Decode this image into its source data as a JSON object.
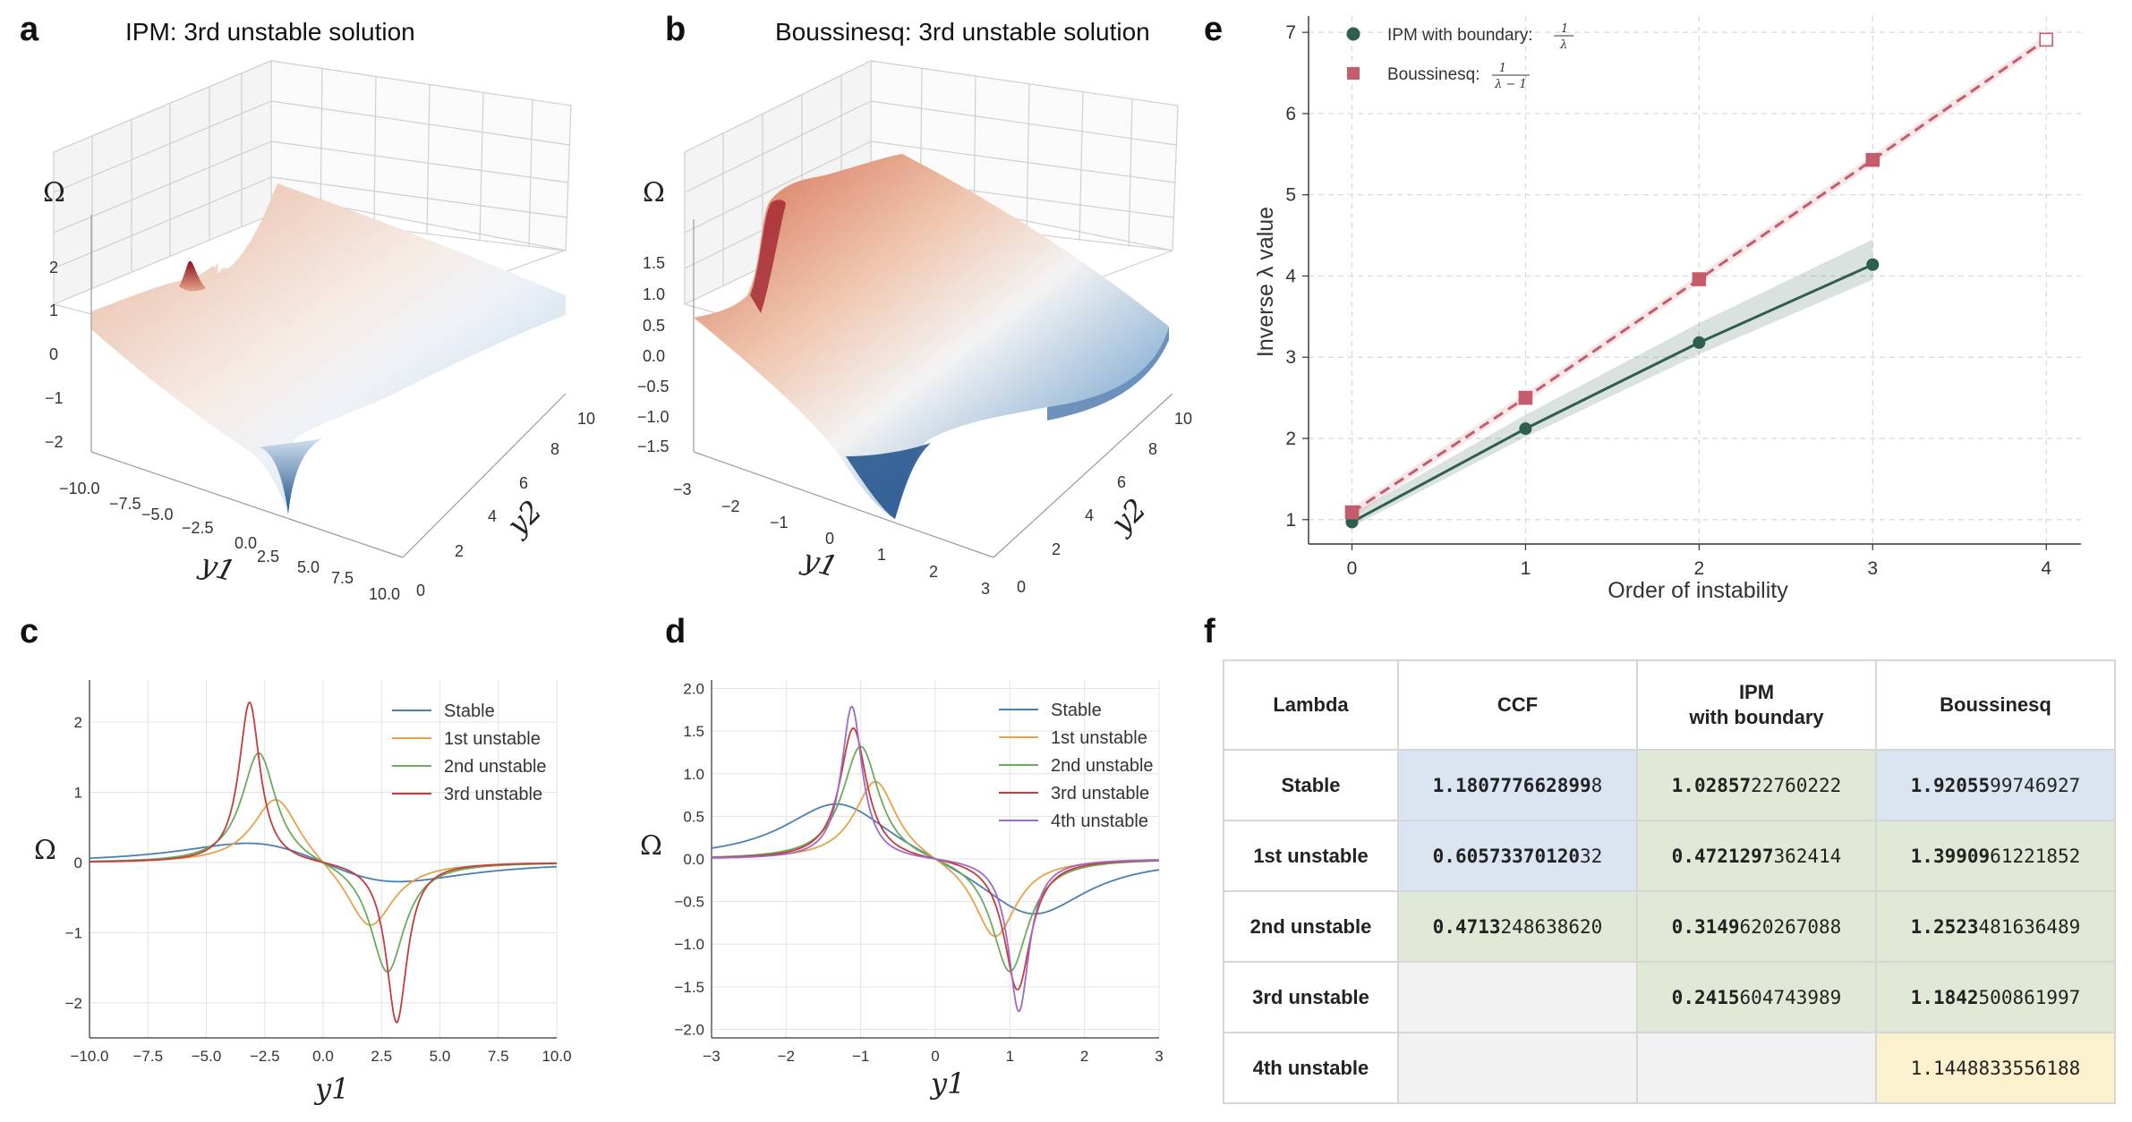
{
  "panel_labels": {
    "a": "a",
    "b": "b",
    "c": "c",
    "d": "d",
    "e": "e",
    "f": "f"
  },
  "colors": {
    "stable": "#4a7fb1",
    "first": "#e8a04a",
    "second": "#6aab5e",
    "third": "#c43c3c",
    "fourth": "#9e6ac3",
    "ipm": "#2e5e4e",
    "bous": "#c45c6c",
    "cell_blue": "#dbe5f1",
    "cell_green": "#dfe9d6",
    "cell_yellow": "#fbf1cf",
    "cell_grey": "#f2f2f2"
  },
  "chart_data": [
    {
      "id": "a",
      "type": "surface",
      "title": "IPM: 3rd unstable solution",
      "zlabel": "Ω",
      "xlabel": "y1",
      "ylabel": "y2",
      "z_ticks": [
        "2",
        "1",
        "0",
        "−1",
        "−2"
      ],
      "x_ticks": [
        "−10.0",
        "−7.5",
        "−5.0",
        "−2.5",
        "0.0",
        "2.5",
        "5.0",
        "7.5",
        "10.0"
      ],
      "y_ticks": [
        "0",
        "2",
        "4",
        "6",
        "8",
        "10"
      ]
    },
    {
      "id": "b",
      "type": "surface",
      "title": "Boussinesq: 3rd unstable solution",
      "zlabel": "Ω",
      "xlabel": "y1",
      "ylabel": "y2",
      "z_ticks": [
        "1.5",
        "1.0",
        "0.5",
        "0.0",
        "−0.5",
        "−1.0",
        "−1.5"
      ],
      "x_ticks": [
        "−3",
        "−2",
        "−1",
        "0",
        "1",
        "2",
        "3"
      ],
      "y_ticks": [
        "0",
        "2",
        "4",
        "6",
        "8",
        "10"
      ]
    },
    {
      "id": "c",
      "type": "line",
      "xlabel": "y1",
      "ylabel": "Ω",
      "xlim": [
        -10,
        10
      ],
      "ylim": [
        -2.5,
        2.6
      ],
      "x_ticks": [
        "−10.0",
        "−7.5",
        "−5.0",
        "−2.5",
        "0.0",
        "2.5",
        "5.0",
        "7.5",
        "10.0"
      ],
      "y_ticks": [
        "2",
        "1",
        "0",
        "−1",
        "−2"
      ],
      "series": [
        {
          "name": "Stable",
          "color": "#4a7fb1",
          "amp": 0.44,
          "c": 2.5,
          "w": 4.2
        },
        {
          "name": "1st unstable",
          "color": "#e8a04a",
          "amp": 0.98,
          "c": 2.0,
          "w": 1.25
        },
        {
          "name": "2nd unstable",
          "color": "#6aab5e",
          "amp": 1.6,
          "c": 2.75,
          "w": 0.9
        },
        {
          "name": "3rd unstable",
          "color": "#c43c3c",
          "amp": 2.3,
          "c": 3.15,
          "w": 0.55
        }
      ]
    },
    {
      "id": "d",
      "type": "line",
      "xlabel": "y1",
      "ylabel": "Ω",
      "xlim": [
        -3,
        3
      ],
      "ylim": [
        -2.1,
        2.1
      ],
      "x_ticks": [
        "−3",
        "−2",
        "−1",
        "0",
        "1",
        "2",
        "3"
      ],
      "y_ticks": [
        "2.0",
        "1.5",
        "1.0",
        "0.5",
        "0.0",
        "−0.5",
        "−1.0",
        "−1.5",
        "−2.0"
      ],
      "series": [
        {
          "name": "Stable",
          "color": "#4a7fb1",
          "amp": 0.72,
          "c": 1.3,
          "w": 0.9
        },
        {
          "name": "1st unstable",
          "color": "#e8a04a",
          "amp": 0.95,
          "c": 0.8,
          "w": 0.35
        },
        {
          "name": "2nd unstable",
          "color": "#6aab5e",
          "amp": 1.35,
          "c": 1.0,
          "w": 0.3
        },
        {
          "name": "3rd unstable",
          "color": "#c43c3c",
          "amp": 1.55,
          "c": 1.1,
          "w": 0.22
        },
        {
          "name": "4th unstable",
          "color": "#9e6ac3",
          "amp": 1.8,
          "c": 1.12,
          "w": 0.17
        }
      ]
    },
    {
      "id": "e",
      "type": "line",
      "xlabel": "Order of instability",
      "ylabel": "Inverse λ value",
      "xlim": [
        -0.25,
        4.2
      ],
      "ylim": [
        0.7,
        7.2
      ],
      "x_ticks": [
        "0",
        "1",
        "2",
        "3",
        "4"
      ],
      "y_ticks": [
        "1",
        "2",
        "3",
        "4",
        "5",
        "6",
        "7"
      ],
      "series": [
        {
          "name": "IPM with boundary:",
          "frac_num": "1",
          "frac_den": "λ",
          "color": "#2e5e4e",
          "marker": "circle",
          "x": [
            0,
            1,
            2,
            3
          ],
          "y": [
            0.97,
            2.12,
            3.18,
            4.14
          ]
        },
        {
          "name": "Boussinesq:",
          "frac_num": "1",
          "frac_den": "λ − 1",
          "color": "#c45c6c",
          "marker": "square",
          "x": [
            0,
            1,
            2,
            3,
            4
          ],
          "y": [
            1.09,
            2.5,
            3.96,
            5.43,
            6.91
          ]
        }
      ]
    },
    {
      "id": "f",
      "type": "table",
      "columns": [
        "Lambda",
        "CCF",
        "IPM\nwith boundary",
        "Boussinesq"
      ],
      "rows": [
        {
          "label": "Stable",
          "cells": [
            {
              "bold": "1.180777662899",
              "rest": "8",
              "bg": "blue"
            },
            {
              "bold": "1.02857",
              "rest": "22760222",
              "bg": "green"
            },
            {
              "bold": "1.92055",
              "rest": "99746927",
              "bg": "blue"
            }
          ]
        },
        {
          "label": "1st unstable",
          "cells": [
            {
              "bold": "0.60573370120",
              "rest": "32",
              "bg": "blue"
            },
            {
              "bold": "0.4721297",
              "rest": "362414",
              "bg": "green"
            },
            {
              "bold": "1.39909",
              "rest": "61221852",
              "bg": "green"
            }
          ]
        },
        {
          "label": "2nd unstable",
          "cells": [
            {
              "bold": "0.4713",
              "rest": "248638620",
              "bg": "green"
            },
            {
              "bold": "0.3149",
              "rest": "620267088",
              "bg": "green"
            },
            {
              "bold": "1.2523",
              "rest": "481636489",
              "bg": "green"
            }
          ]
        },
        {
          "label": "3rd unstable",
          "cells": [
            {
              "bold": "",
              "rest": "",
              "bg": "grey"
            },
            {
              "bold": "0.2415",
              "rest": "604743989",
              "bg": "green"
            },
            {
              "bold": "1.1842",
              "rest": "500861997",
              "bg": "green"
            }
          ]
        },
        {
          "label": "4th unstable",
          "cells": [
            {
              "bold": "",
              "rest": "",
              "bg": "grey"
            },
            {
              "bold": "",
              "rest": "",
              "bg": "grey"
            },
            {
              "bold": "",
              "rest": "1.1448833556188",
              "bg": "yellow"
            }
          ]
        }
      ]
    }
  ]
}
